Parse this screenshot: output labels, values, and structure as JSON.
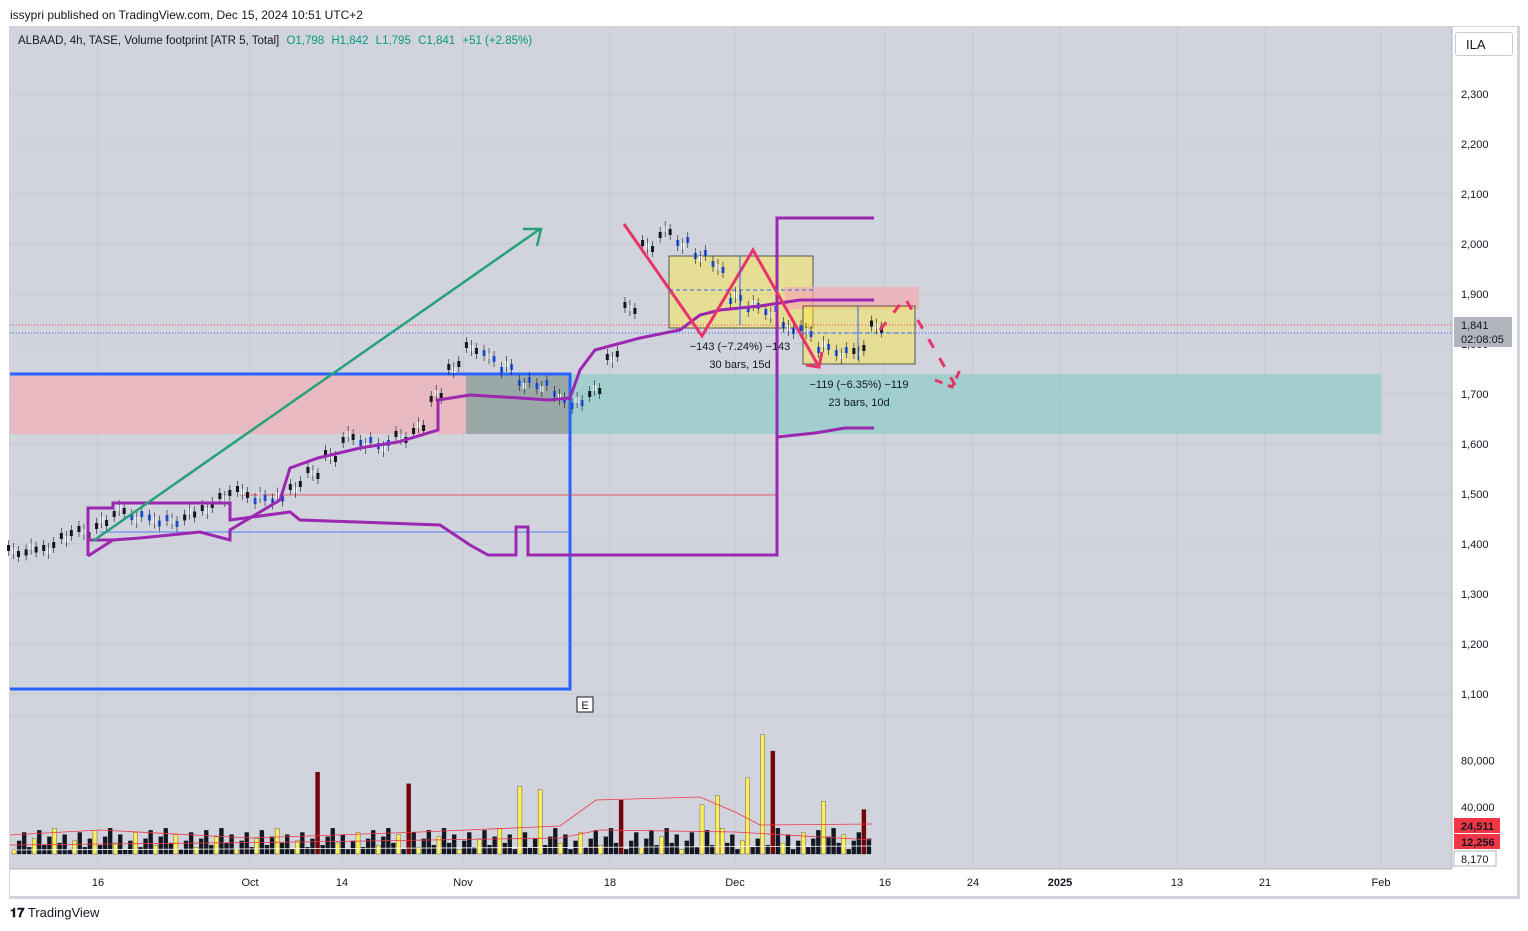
{
  "header": {
    "text": "issypri published on TradingView.com, Dec 15, 2024 10:51 UTC+2"
  },
  "legend": {
    "symbol": "ALBAAD, 4h, TASE, Volume footprint [ATR 5, Total]",
    "open": "O1,798",
    "high": "H1,842",
    "low": "L1,795",
    "close": "C1,841",
    "change": "+51 (+2.85%)"
  },
  "currency_button": "ILA",
  "footer": {
    "brand": "TradingView"
  },
  "colors": {
    "up": "#089981",
    "down": "#f23645",
    "trend_up": "#26a17a",
    "trend_down": "#e8336b",
    "envelope": "#9c27b0",
    "range_box": "#2962ff"
  },
  "chart_data": {
    "type": "candlestick",
    "price_axis": {
      "ticks": [
        "2,300",
        "2,200",
        "2,100",
        "2,000",
        "1,900",
        "1,800",
        "1,700",
        "1,600",
        "1,500",
        "1,400",
        "1,300",
        "1,200",
        "1,100"
      ],
      "ylim": [
        1080,
        2400
      ]
    },
    "volume_axis": {
      "ticks": [
        "80,000",
        "40,000"
      ],
      "ylim": [
        0,
        100000
      ]
    },
    "time_axis": {
      "ticks": [
        "16",
        "Oct",
        "14",
        "Nov",
        "18",
        "Dec",
        "16",
        "24",
        "2025",
        "13",
        "21",
        "Feb"
      ]
    },
    "last_price": {
      "value": "1,841",
      "countdown": "02:08:05"
    },
    "volume_labels": {
      "red": "24,511",
      "red2": "12,256",
      "white": "8,170"
    },
    "measurements": [
      {
        "line1": "−143 (−7.24%) −143",
        "line2": "30 bars, 15d"
      },
      {
        "line1": "−119 (−6.35%) −119",
        "line2": "23 bars, 10d"
      }
    ],
    "event_marker": "E",
    "series": [
      {
        "name": "ALBAAD",
        "close": [
          1390,
          1395,
          1400,
          1420,
          1430,
          1450,
          1470,
          1460,
          1455,
          1450,
          1465,
          1480,
          1500,
          1510,
          1500,
          1495,
          1520,
          1550,
          1580,
          1620,
          1610,
          1600,
          1620,
          1640,
          1700,
          1760,
          1800,
          1780,
          1760,
          1730,
          1720,
          1700,
          1690,
          1710,
          1780,
          1880,
          2000,
          2030,
          2010,
          1980,
          1960,
          1900,
          1880,
          1870,
          1840,
          1830,
          1800,
          1790,
          1790,
          1841
        ]
      }
    ]
  }
}
